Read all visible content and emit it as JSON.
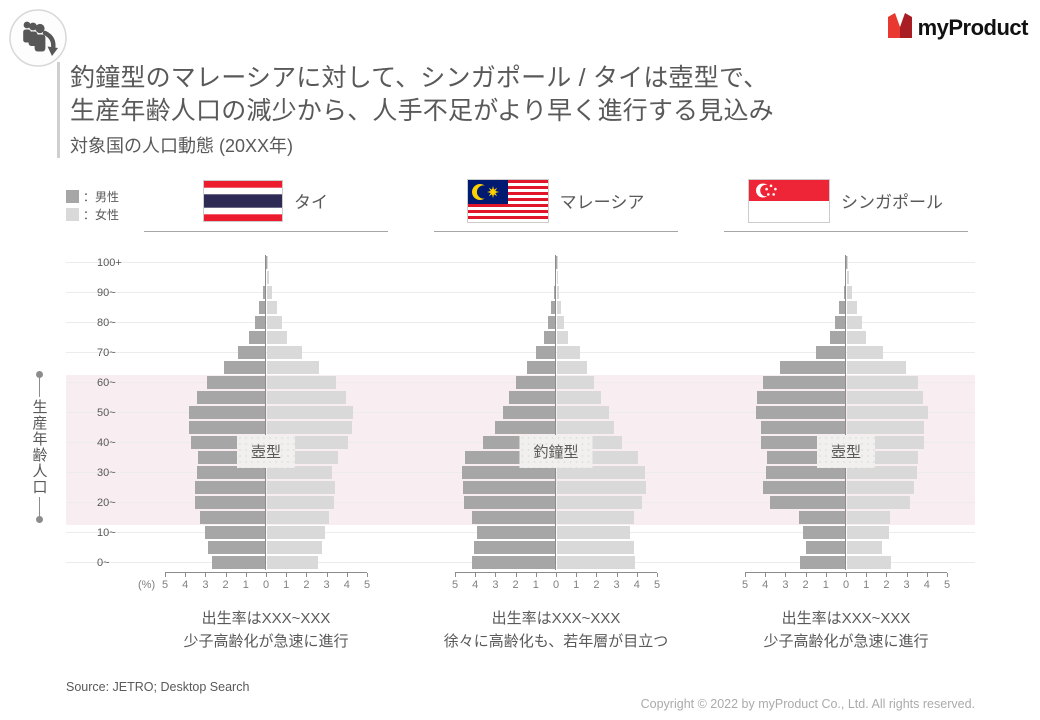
{
  "header": {
    "logo_text": "myProduct",
    "badge_icon": "people-attrition-icon"
  },
  "title": {
    "line1": "釣鐘型のマレーシアに対して、シンガポール / タイは壺型で、",
    "line2": "生産年齢人口の減少から、人手不足がより早く進行する見込み",
    "subtitle": "対象国の人口動態 (20XX年)"
  },
  "legend": {
    "male_label": "：男性",
    "female_label": "：女性",
    "male_color": "#a6a6a6",
    "female_color": "#d9d9d9"
  },
  "annotation": {
    "text": "生産年齢人口",
    "band_color": "#f8edf0",
    "band_age_range": "15-64"
  },
  "axis": {
    "percent_label": "(%)",
    "ticks": [
      "5",
      "4",
      "3",
      "2",
      "1",
      "0",
      "1",
      "2",
      "3",
      "4",
      "5"
    ],
    "age_labels": [
      "100+",
      "90~",
      "80~",
      "70~",
      "60~",
      "50~",
      "40~",
      "30~",
      "20~",
      "10~",
      "0~"
    ]
  },
  "chart_data": [
    {
      "type": "bar",
      "variant": "population-pyramid",
      "country": "タイ",
      "flag": "thailand-flag",
      "shape_label": "壺型",
      "caption": [
        "出生率はXXX~XXX",
        "少子高齢化が急速に進行"
      ],
      "xlabel": "(%)",
      "xlim": [
        0,
        5
      ],
      "age_groups": [
        "0-4",
        "5-9",
        "10-14",
        "15-19",
        "20-24",
        "25-29",
        "30-34",
        "35-39",
        "40-44",
        "45-49",
        "50-54",
        "55-59",
        "60-64",
        "65-69",
        "70-74",
        "75-79",
        "80-84",
        "85-89",
        "90-94",
        "95-99",
        "100+"
      ],
      "series": [
        {
          "name": "男性",
          "values": [
            2.65,
            2.85,
            3.0,
            3.25,
            3.5,
            3.5,
            3.4,
            3.35,
            3.7,
            3.8,
            3.8,
            3.4,
            2.9,
            2.1,
            1.4,
            0.85,
            0.55,
            0.35,
            0.15,
            0.06,
            0.02
          ]
        },
        {
          "name": "女性",
          "values": [
            2.5,
            2.7,
            2.85,
            3.05,
            3.3,
            3.35,
            3.2,
            3.5,
            4.0,
            4.2,
            4.25,
            3.9,
            3.4,
            2.55,
            1.75,
            1.0,
            0.75,
            0.5,
            0.25,
            0.1,
            0.03
          ]
        }
      ]
    },
    {
      "type": "bar",
      "variant": "population-pyramid",
      "country": "マレーシア",
      "flag": "malaysia-flag",
      "shape_label": "釣鐘型",
      "caption": [
        "出生率はXXX~XXX",
        "徐々に高齢化も、若年層が目立つ"
      ],
      "xlabel": "(%)",
      "xlim": [
        0,
        5
      ],
      "age_groups": [
        "0-4",
        "5-9",
        "10-14",
        "15-19",
        "20-24",
        "25-29",
        "30-34",
        "35-39",
        "40-44",
        "45-49",
        "50-54",
        "55-59",
        "60-64",
        "65-69",
        "70-74",
        "75-79",
        "80-84",
        "85-89",
        "90-94",
        "95-99",
        "100+"
      ],
      "series": [
        {
          "name": "男性",
          "values": [
            4.15,
            4.05,
            3.9,
            4.15,
            4.55,
            4.6,
            4.65,
            4.5,
            3.6,
            3.0,
            2.6,
            2.35,
            2.0,
            1.45,
            1.0,
            0.6,
            0.38,
            0.25,
            0.1,
            0.04,
            0.01
          ]
        },
        {
          "name": "女性",
          "values": [
            3.85,
            3.8,
            3.6,
            3.8,
            4.2,
            4.4,
            4.35,
            4.0,
            3.2,
            2.8,
            2.55,
            2.2,
            1.85,
            1.5,
            1.15,
            0.55,
            0.33,
            0.2,
            0.08,
            0.03,
            0.01
          ]
        }
      ]
    },
    {
      "type": "bar",
      "variant": "population-pyramid",
      "country": "シンガポール",
      "flag": "singapore-flag",
      "shape_label": "壺型",
      "caption": [
        "出生率はXXX~XXX",
        "少子高齢化が急速に進行"
      ],
      "xlabel": "(%)",
      "xlim": [
        0,
        5
      ],
      "age_groups": [
        "0-4",
        "5-9",
        "10-14",
        "15-19",
        "20-24",
        "25-29",
        "30-34",
        "35-39",
        "40-44",
        "45-49",
        "50-54",
        "55-59",
        "60-64",
        "65-69",
        "70-74",
        "75-79",
        "80-84",
        "85-89",
        "90-94",
        "95-99",
        "100+"
      ],
      "series": [
        {
          "name": "男性",
          "values": [
            2.3,
            2.0,
            2.15,
            2.35,
            3.75,
            4.1,
            3.95,
            3.9,
            4.2,
            4.2,
            4.45,
            4.4,
            4.1,
            3.25,
            1.5,
            0.8,
            0.55,
            0.33,
            0.12,
            0.05,
            0.02
          ]
        },
        {
          "name": "女性",
          "values": [
            2.2,
            1.75,
            2.1,
            2.15,
            3.1,
            3.3,
            3.45,
            3.5,
            3.8,
            3.8,
            4.0,
            3.75,
            3.5,
            2.9,
            1.8,
            0.95,
            0.75,
            0.5,
            0.25,
            0.1,
            0.03
          ]
        }
      ]
    }
  ],
  "footer": {
    "source": "Source: JETRO; Desktop Search",
    "copyright": "Copyright © 2022 by myProduct Co., Ltd.  All rights reserved."
  }
}
